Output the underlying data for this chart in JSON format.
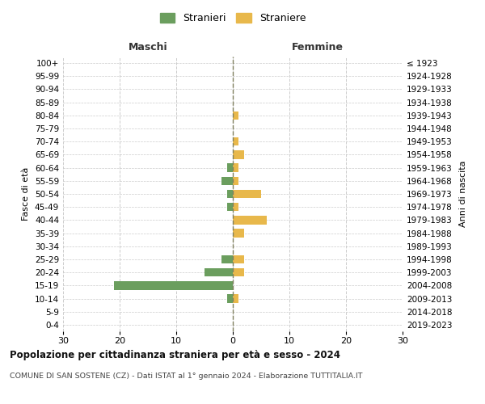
{
  "age_groups": [
    "0-4",
    "5-9",
    "10-14",
    "15-19",
    "20-24",
    "25-29",
    "30-34",
    "35-39",
    "40-44",
    "45-49",
    "50-54",
    "55-59",
    "60-64",
    "65-69",
    "70-74",
    "75-79",
    "80-84",
    "85-89",
    "90-94",
    "95-99",
    "100+"
  ],
  "birth_years": [
    "2019-2023",
    "2014-2018",
    "2009-2013",
    "2004-2008",
    "1999-2003",
    "1994-1998",
    "1989-1993",
    "1984-1988",
    "1979-1983",
    "1974-1978",
    "1969-1973",
    "1964-1968",
    "1959-1963",
    "1954-1958",
    "1949-1953",
    "1944-1948",
    "1939-1943",
    "1934-1938",
    "1929-1933",
    "1924-1928",
    "≤ 1923"
  ],
  "males": [
    0,
    0,
    1,
    21,
    5,
    2,
    0,
    0,
    0,
    1,
    1,
    2,
    1,
    0,
    0,
    0,
    0,
    0,
    0,
    0,
    0
  ],
  "females": [
    0,
    0,
    1,
    0,
    2,
    2,
    0,
    2,
    6,
    1,
    5,
    1,
    1,
    2,
    1,
    0,
    1,
    0,
    0,
    0,
    0
  ],
  "male_color": "#6b9e5e",
  "female_color": "#e8b84b",
  "grid_color": "#cccccc",
  "dashed_line_color": "#808060",
  "xlim": 30,
  "title": "Popolazione per cittadinanza straniera per età e sesso - 2024",
  "subtitle": "COMUNE DI SAN SOSTENE (CZ) - Dati ISTAT al 1° gennaio 2024 - Elaborazione TUTTITALIA.IT",
  "legend_stranieri": "Stranieri",
  "legend_straniere": "Straniere",
  "ylabel_left": "Fasce di età",
  "ylabel_right": "Anni di nascita",
  "header_maschi": "Maschi",
  "header_femmine": "Femmine"
}
